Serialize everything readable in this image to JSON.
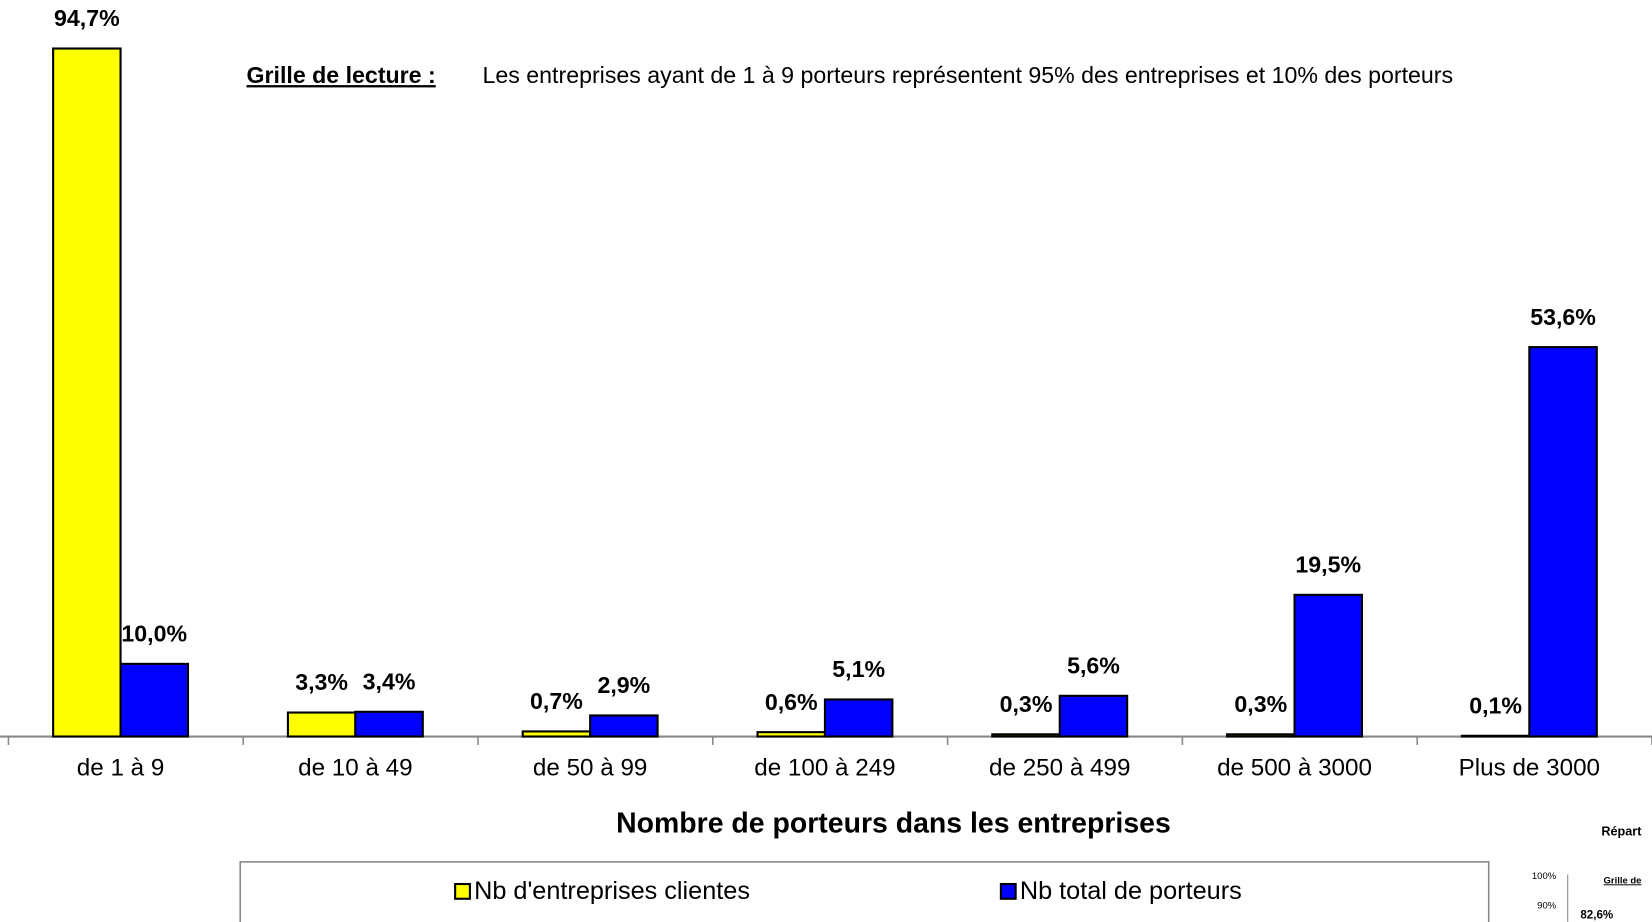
{
  "chart_data": {
    "type": "bar",
    "annotation_heading": "Grille de lecture :",
    "annotation": "Les entreprises ayant de 1 à 9 porteurs représentent  95% des entreprises et 10% des porteurs",
    "xlabel": "Nombre de porteurs dans les entreprises",
    "categories": [
      "de 1 à 9",
      "de 10 à 49",
      "de 50 à 99",
      "de 100 à 249",
      "de 250 à 499",
      "de 500 à 3000",
      "Plus de 3000"
    ],
    "series": [
      {
        "name": "Nb d'entreprises clientes",
        "color": "#ffff00",
        "values": [
          94.7,
          3.3,
          0.7,
          0.6,
          0.3,
          0.3,
          0.1
        ],
        "value_labels": [
          "94,7%",
          "3,3%",
          "0,7%",
          "0,6%",
          "0,3%",
          "0,3%",
          "0,1%"
        ]
      },
      {
        "name": "Nb total de porteurs",
        "color": "#0000ff",
        "values": [
          10.0,
          3.4,
          2.9,
          5.1,
          5.6,
          19.5,
          53.6
        ],
        "value_labels": [
          "10,0%",
          "3,4%",
          "2,9%",
          "5,1%",
          "5,6%",
          "19,5%",
          "53,6%"
        ]
      }
    ],
    "legend": "bottom"
  },
  "inset": {
    "title": "Répart",
    "ticks": [
      "100%",
      "90%"
    ],
    "note": "Grille de",
    "label": "82,6%"
  }
}
